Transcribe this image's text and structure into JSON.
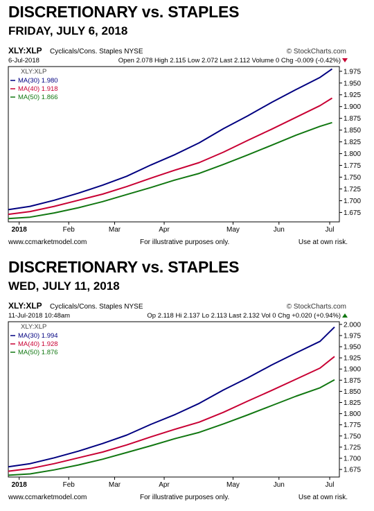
{
  "charts": [
    {
      "title": "DISCRETIONARY vs. STAPLES",
      "subtitle": "FRIDAY, JULY 6, 2018",
      "header": {
        "symbol": "XLY:XLP",
        "description": "Cyclicals/Cons. Staples NYSE",
        "source": "© StockCharts.com",
        "date": "6-Jul-2018",
        "stats": "Open 2.078  High 2.115  Low 2.072  Last 2.112  Volume 0  Chg -0.009 (-0.42%)",
        "chg_direction": "down"
      },
      "legend_title": "XLY:XLP",
      "footer": {
        "left": "www.ccmarketmodel.com",
        "middle": "For illustrative purposes only.",
        "right": "Use at own risk."
      }
    },
    {
      "title": "DISCRETIONARY vs. STAPLES",
      "subtitle": "WED, JULY 11, 2018",
      "header": {
        "symbol": "XLY:XLP",
        "description": "Cyclicals/Cons. Staples NYSE",
        "source": "© StockCharts.com",
        "date": "11-Jul-2018 10:48am",
        "stats": "Op 2.118  Hi 2.137  Lo 2.113  Last 2.132  Vol 0  Chg +0.020 (+0.94%)",
        "chg_direction": "up"
      },
      "legend_title": "XLY:XLP",
      "footer": {
        "left": "www.ccmarketmodel.com",
        "middle": "For illustrative purposes only.",
        "right": "Use at own risk."
      }
    }
  ],
  "chart_data": [
    {
      "type": "line",
      "x_ticks": [
        "2018",
        "Feb",
        "Mar",
        "Apr",
        "May",
        "Jun",
        "Jul"
      ],
      "x_tick_pos": [
        0.05,
        2.1,
        4.0,
        6.05,
        8.9,
        10.8,
        12.9
      ],
      "x_range": [
        -0.4,
        13.3
      ],
      "ylim": [
        1.655,
        1.985
      ],
      "y_ticks": [
        1.675,
        1.7,
        1.725,
        1.75,
        1.775,
        1.8,
        1.825,
        1.85,
        1.875,
        1.9,
        1.925,
        1.95,
        1.975
      ],
      "y_tick_labels": [
        "1.675",
        "1.700",
        "1.725",
        "1.750",
        "1.775",
        "1.800",
        "1.825",
        "1.850",
        "1.875",
        "1.900",
        "1.925",
        "1.950",
        "1.975"
      ],
      "series": [
        {
          "name": "MA(30)",
          "value_label": "1.980",
          "color": "#000080",
          "x": [
            -0.4,
            0.5,
            1.5,
            2.5,
            3.5,
            4.5,
            5.5,
            6.5,
            7.5,
            8.5,
            9.5,
            10.5,
            11.5,
            12.5,
            13.0
          ],
          "values": [
            1.681,
            1.688,
            1.701,
            1.716,
            1.733,
            1.752,
            1.776,
            1.798,
            1.823,
            1.853,
            1.88,
            1.909,
            1.936,
            1.962,
            1.98
          ]
        },
        {
          "name": "MA(40)",
          "value_label": "1.918",
          "color": "#c80033",
          "x": [
            -0.4,
            0.5,
            1.5,
            2.5,
            3.5,
            4.5,
            5.5,
            6.5,
            7.5,
            8.5,
            9.5,
            10.5,
            11.5,
            12.5,
            13.0
          ],
          "values": [
            1.671,
            1.677,
            1.688,
            1.701,
            1.714,
            1.73,
            1.748,
            1.765,
            1.781,
            1.803,
            1.828,
            1.852,
            1.877,
            1.902,
            1.918
          ]
        },
        {
          "name": "MA(50)",
          "value_label": "1.866",
          "color": "#117711",
          "x": [
            -0.4,
            0.5,
            1.5,
            2.5,
            3.5,
            4.5,
            5.5,
            6.5,
            7.5,
            8.5,
            9.5,
            10.5,
            11.5,
            12.5,
            13.0
          ],
          "values": [
            1.662,
            1.665,
            1.674,
            1.685,
            1.698,
            1.713,
            1.728,
            1.744,
            1.758,
            1.777,
            1.797,
            1.818,
            1.839,
            1.858,
            1.866
          ]
        }
      ]
    },
    {
      "type": "line",
      "x_ticks": [
        "2018",
        "Feb",
        "Mar",
        "Apr",
        "May",
        "Jun",
        "Jul"
      ],
      "x_tick_pos": [
        0.05,
        2.1,
        4.0,
        6.05,
        8.9,
        10.8,
        12.9
      ],
      "x_range": [
        -0.4,
        13.3
      ],
      "ylim": [
        1.658,
        2.006
      ],
      "y_ticks": [
        1.675,
        1.7,
        1.725,
        1.75,
        1.775,
        1.8,
        1.825,
        1.85,
        1.875,
        1.9,
        1.925,
        1.95,
        1.975,
        2.0
      ],
      "y_tick_labels": [
        "1.675",
        "1.700",
        "1.725",
        "1.750",
        "1.775",
        "1.800",
        "1.825",
        "1.850",
        "1.875",
        "1.900",
        "1.925",
        "1.950",
        "1.975",
        "2.000"
      ],
      "series": [
        {
          "name": "MA(30)",
          "value_label": "1.994",
          "color": "#000080",
          "x": [
            -0.4,
            0.5,
            1.5,
            2.5,
            3.5,
            4.5,
            5.5,
            6.5,
            7.5,
            8.5,
            9.5,
            10.5,
            11.5,
            12.5,
            13.1
          ],
          "values": [
            1.681,
            1.688,
            1.701,
            1.716,
            1.733,
            1.752,
            1.776,
            1.798,
            1.823,
            1.853,
            1.88,
            1.909,
            1.936,
            1.962,
            1.994
          ]
        },
        {
          "name": "MA(40)",
          "value_label": "1.928",
          "color": "#c80033",
          "x": [
            -0.4,
            0.5,
            1.5,
            2.5,
            3.5,
            4.5,
            5.5,
            6.5,
            7.5,
            8.5,
            9.5,
            10.5,
            11.5,
            12.5,
            13.1
          ],
          "values": [
            1.671,
            1.677,
            1.688,
            1.701,
            1.714,
            1.73,
            1.748,
            1.765,
            1.781,
            1.803,
            1.828,
            1.852,
            1.877,
            1.902,
            1.928
          ]
        },
        {
          "name": "MA(50)",
          "value_label": "1.876",
          "color": "#117711",
          "x": [
            -0.4,
            0.5,
            1.5,
            2.5,
            3.5,
            4.5,
            5.5,
            6.5,
            7.5,
            8.5,
            9.5,
            10.5,
            11.5,
            12.5,
            13.1
          ],
          "values": [
            1.662,
            1.665,
            1.674,
            1.685,
            1.698,
            1.713,
            1.728,
            1.744,
            1.758,
            1.777,
            1.797,
            1.818,
            1.839,
            1.858,
            1.876
          ]
        }
      ]
    }
  ]
}
